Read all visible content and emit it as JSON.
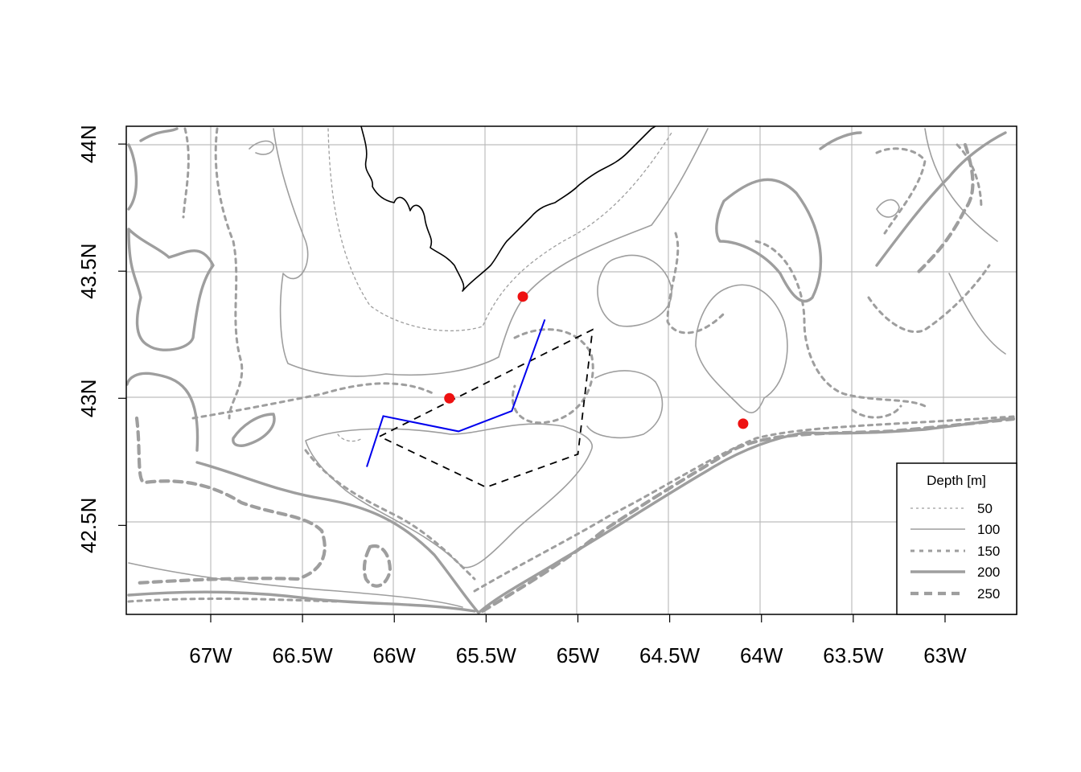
{
  "map": {
    "x_ticks": [
      {
        "value": -67.0,
        "label": "67W"
      },
      {
        "value": -66.5,
        "label": "66.5W"
      },
      {
        "value": -66.0,
        "label": "66W"
      },
      {
        "value": -65.5,
        "label": "65.5W"
      },
      {
        "value": -65.0,
        "label": "65W"
      },
      {
        "value": -64.5,
        "label": "64.5W"
      },
      {
        "value": -64.0,
        "label": "64W"
      },
      {
        "value": -63.5,
        "label": "63.5W"
      },
      {
        "value": -63.0,
        "label": "63W"
      }
    ],
    "y_ticks": [
      {
        "value": 44.0,
        "label": "44N"
      },
      {
        "value": 43.5,
        "label": "43.5N"
      },
      {
        "value": 43.0,
        "label": "43N"
      },
      {
        "value": 42.5,
        "label": "42.5N"
      }
    ],
    "xlim": [
      -67.46,
      -62.61
    ],
    "ylim": [
      42.15,
      44.07
    ],
    "grid": true,
    "colors": {
      "coastline": "#000000",
      "isobath": "#9e9e9e",
      "polygon": "#000000",
      "track": "#0000ee",
      "stations": "#ee1111",
      "grid": "#bdbdbd"
    },
    "stations": [
      {
        "lon": -65.3,
        "lat": 43.4
      },
      {
        "lon": -65.7,
        "lat": 43.0
      },
      {
        "lon": -64.1,
        "lat": 42.9
      }
    ],
    "polygon": [
      {
        "lon": -66.08,
        "lat": 42.85
      },
      {
        "lon": -64.92,
        "lat": 43.27
      },
      {
        "lon": -65.0,
        "lat": 42.78
      },
      {
        "lon": -65.5,
        "lat": 42.65
      },
      {
        "lon": -66.08,
        "lat": 42.85
      }
    ],
    "track": [
      {
        "lon": -66.15,
        "lat": 42.73
      },
      {
        "lon": -66.06,
        "lat": 42.93
      },
      {
        "lon": -65.65,
        "lat": 42.87
      },
      {
        "lon": -65.36,
        "lat": 42.95
      },
      {
        "lon": -65.18,
        "lat": 43.31
      }
    ]
  },
  "legend": {
    "title": "Depth [m]",
    "position": "bottom-right",
    "items": [
      {
        "label": "50",
        "style": "dotted-thin"
      },
      {
        "label": "100",
        "style": "solid-thin"
      },
      {
        "label": "150",
        "style": "dotted-medium"
      },
      {
        "label": "200",
        "style": "solid-thick"
      },
      {
        "label": "250",
        "style": "dashed-thick"
      }
    ]
  }
}
